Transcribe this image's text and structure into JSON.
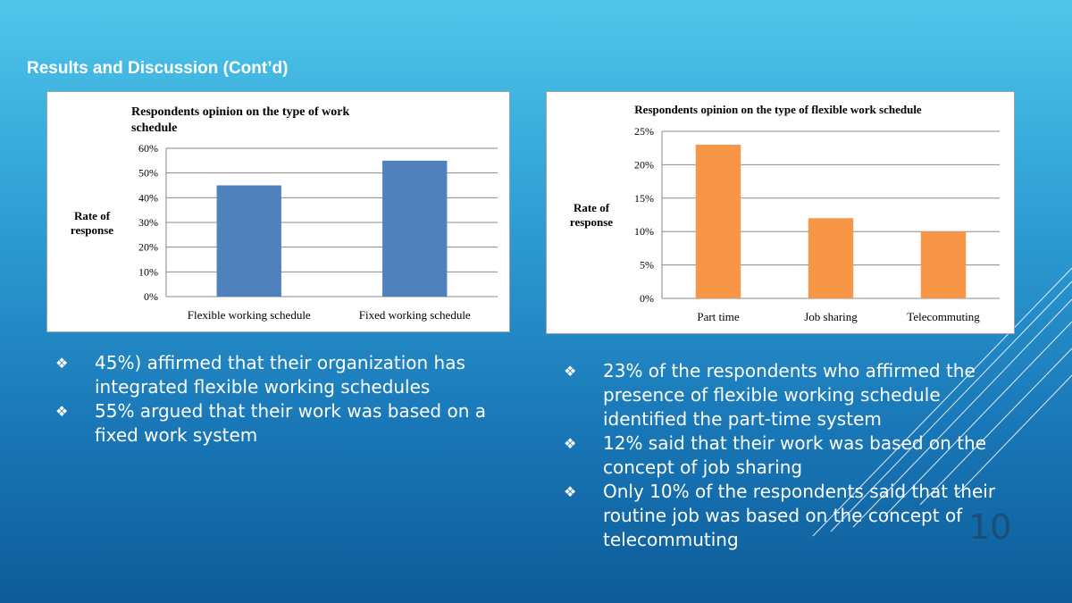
{
  "slide": {
    "title": "Results and Discussion (Cont’d)",
    "page_number": "10",
    "bullet_marker": "❖",
    "colors": {
      "accent_blue": "#4f81bd",
      "accent_orange": "#f79646",
      "title_text": "#ffffff"
    }
  },
  "chart_data": [
    {
      "type": "bar",
      "title": "Respondents opinion on the type of work schedule",
      "title_lines": [
        "Respondents opinion on the type of work",
        "schedule"
      ],
      "ylabel_lines": [
        "Rate of",
        "response"
      ],
      "xlabel": "",
      "categories": [
        "Flexible working schedule",
        "Fixed working schedule"
      ],
      "values": [
        45,
        55
      ],
      "ylim": [
        0,
        60
      ],
      "yticks": [
        0,
        10,
        20,
        30,
        40,
        50,
        60
      ],
      "tick_suffix": "%",
      "color": "#4f81bd",
      "grid": true
    },
    {
      "type": "bar",
      "title": "Respondents opinion on the type of flexible work schedule",
      "title_lines": [
        "Respondents opinion on the type of flexible work schedule"
      ],
      "ylabel_lines": [
        "Rate of",
        "response"
      ],
      "xlabel": "",
      "categories": [
        "Part time",
        "Job sharing",
        "Telecommuting"
      ],
      "values": [
        23,
        12,
        10
      ],
      "ylim": [
        0,
        25
      ],
      "yticks": [
        0,
        5,
        10,
        15,
        20,
        25
      ],
      "tick_suffix": "%",
      "color": "#f79646",
      "grid": true
    }
  ],
  "bullets_left": [
    {
      "text": "45%) affirmed that their organization has integrated flexible working schedules"
    },
    {
      "text": "55% argued that their work was based on a fixed work system"
    }
  ],
  "bullets_right": [
    {
      "text": "23% of the respondents who affirmed the presence of flexible working schedule identified the part-time system"
    },
    {
      "text": "12% said that their work was based on the concept of job sharing"
    },
    {
      "text": "Only 10% of the respondents said that their routine job was based on the concept of telecommuting"
    }
  ]
}
